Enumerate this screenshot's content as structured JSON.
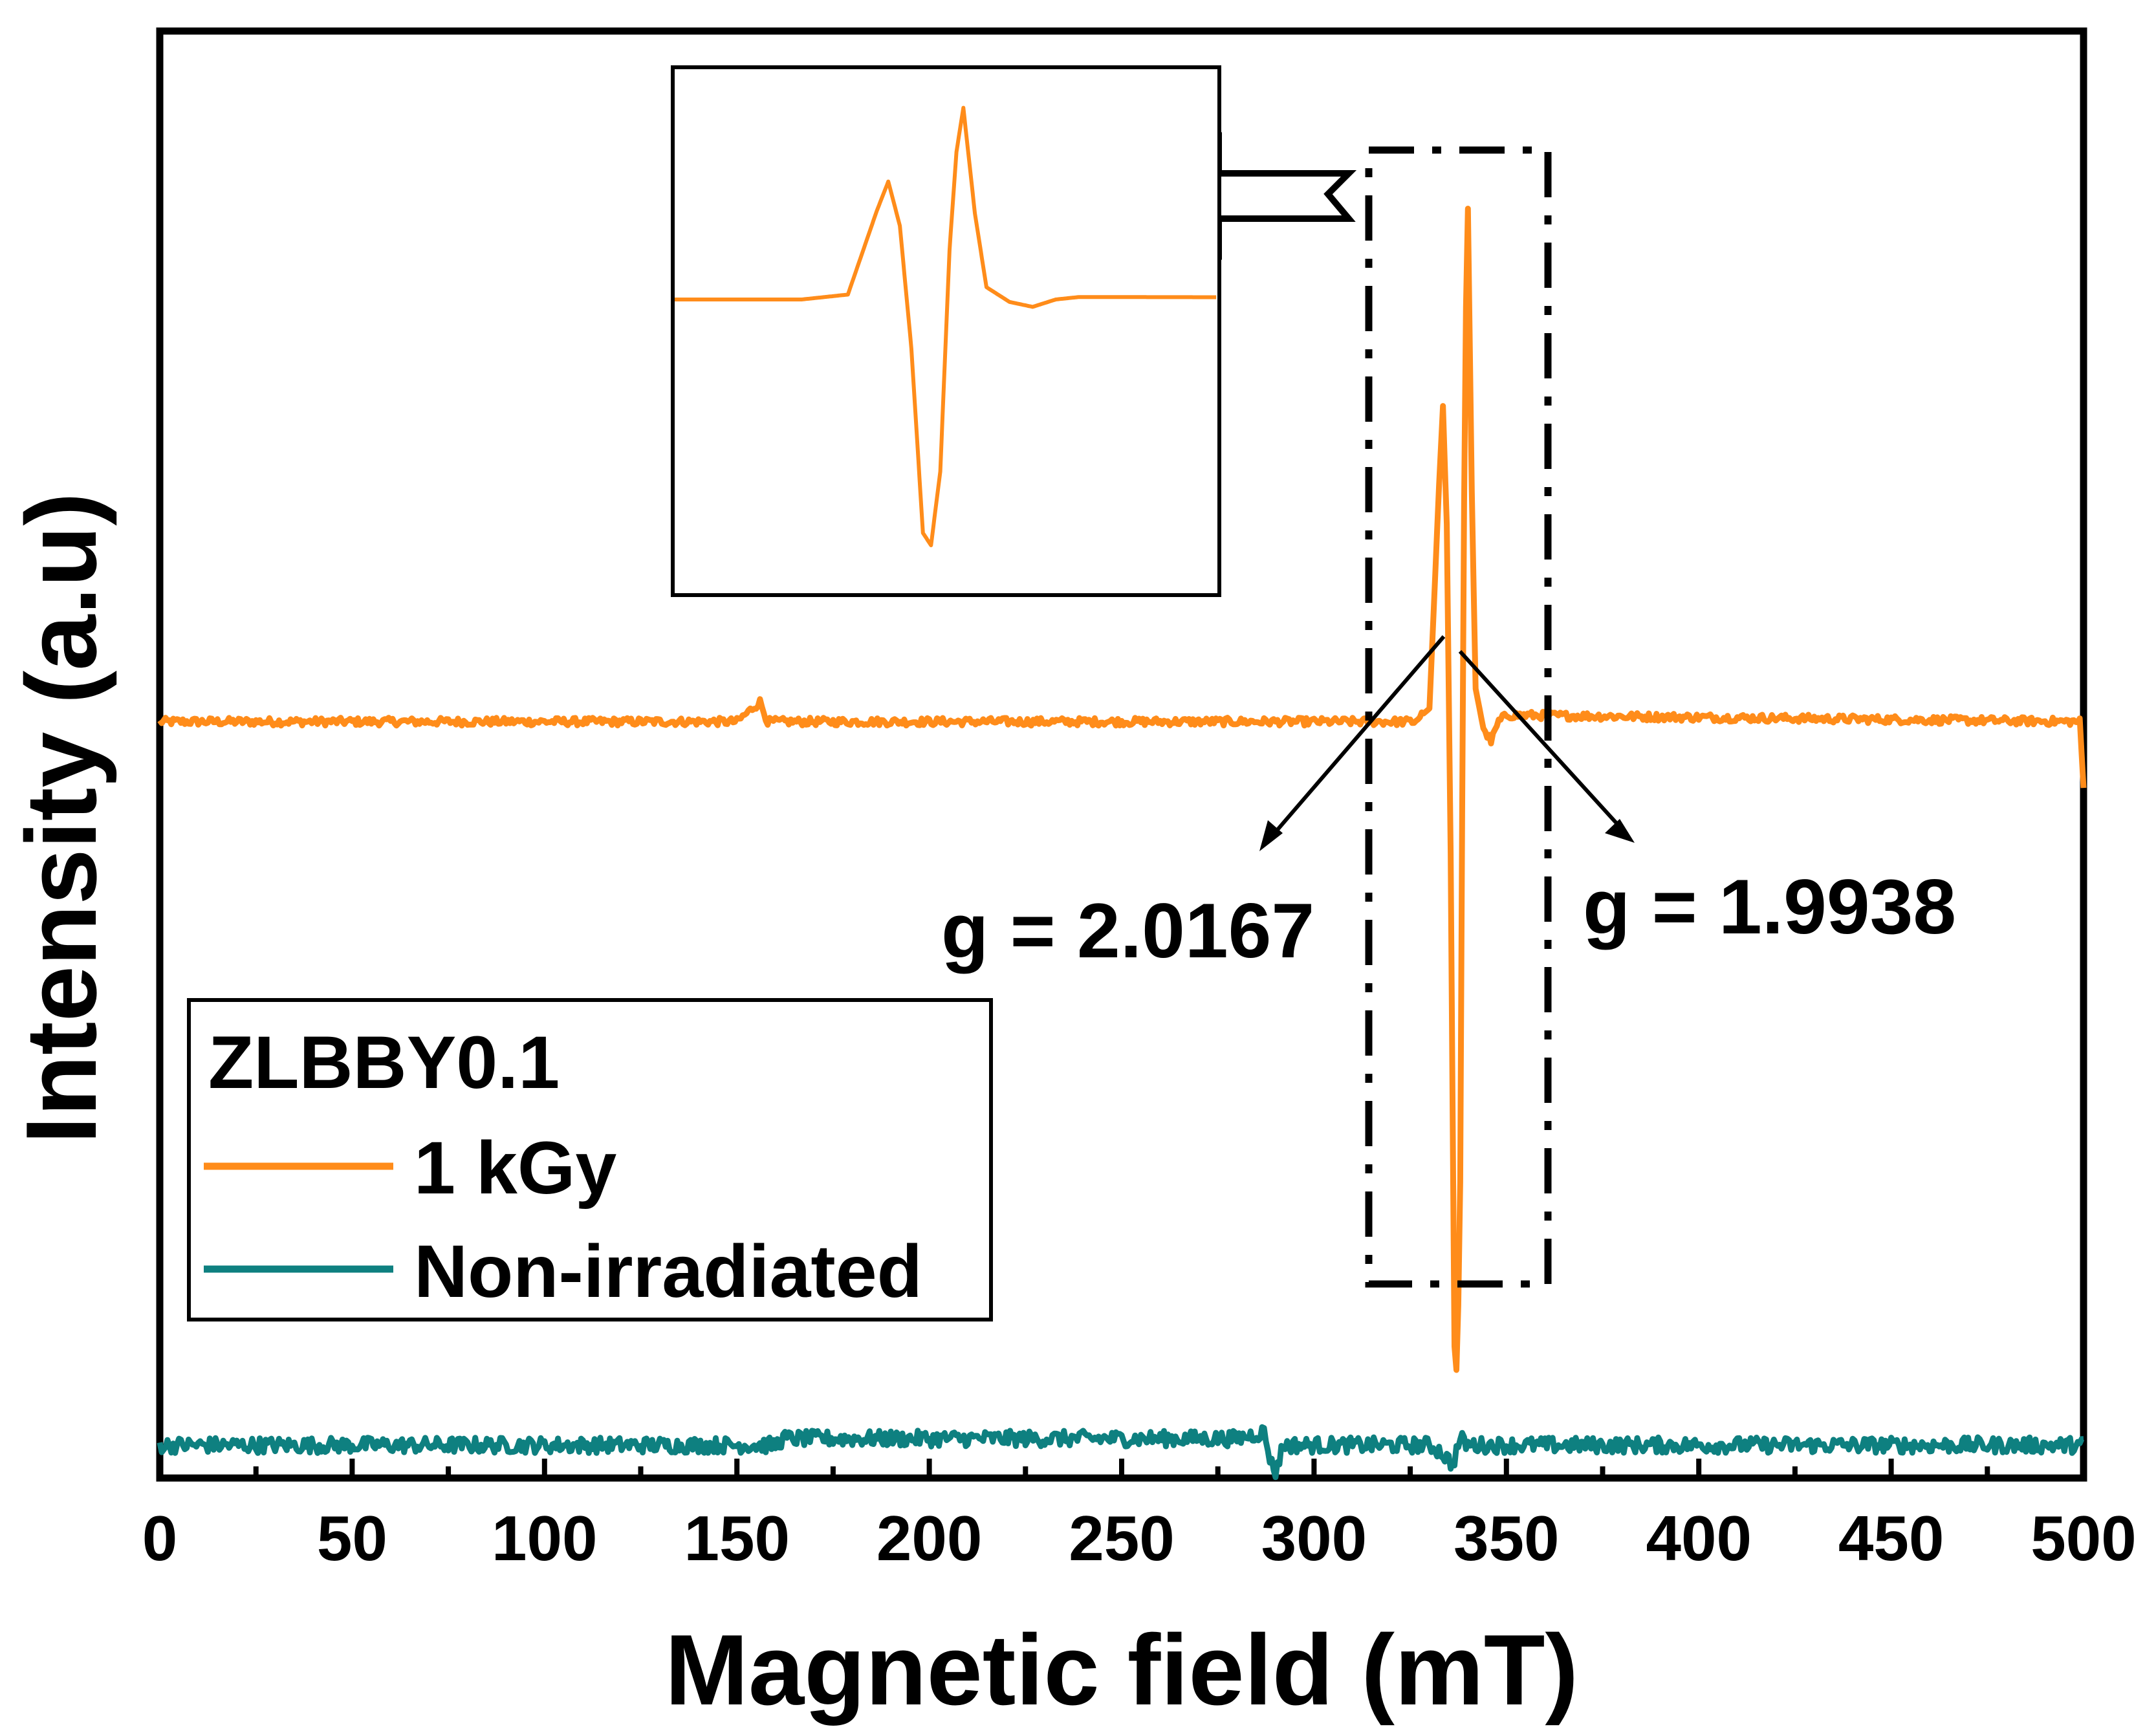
{
  "chart_data": {
    "type": "line",
    "xlabel": "Magnetic field (mT)",
    "ylabel": "Intensity (a.u)",
    "xlim": [
      0,
      500
    ],
    "ylim": [
      -1.15,
      1.05
    ],
    "x_ticks": [
      "0",
      "50",
      "100",
      "150",
      "200",
      "250",
      "300",
      "350",
      "400",
      "450",
      "500"
    ],
    "grid": false,
    "legend": {
      "position": "bottom-left",
      "title": "ZLBBY0.1",
      "entries": [
        "1 kGy",
        "Non-irradiated"
      ]
    },
    "series": [
      {
        "name": "1 kGy",
        "color": "#FF8C1A",
        "baseline": 0,
        "points": [
          [
            0,
            0
          ],
          [
            150,
            0
          ],
          [
            154,
            0.02
          ],
          [
            156,
            0.03
          ],
          [
            158,
            0
          ],
          [
            326,
            0
          ],
          [
            330,
            0.02
          ],
          [
            332.5,
            0.36
          ],
          [
            333.5,
            0.48
          ],
          [
            334.5,
            0.3
          ],
          [
            335.5,
            -0.2
          ],
          [
            336.5,
            -0.95
          ],
          [
            337.2,
            -1.0
          ],
          [
            338,
            -0.7
          ],
          [
            338.8,
            0.2
          ],
          [
            339.4,
            0.6
          ],
          [
            340,
            0.78
          ],
          [
            341,
            0.35
          ],
          [
            342,
            0.05
          ],
          [
            344,
            -0.01
          ],
          [
            346,
            -0.03
          ],
          [
            348,
            0
          ],
          [
            350,
            0.01
          ],
          [
            499,
            0
          ],
          [
            500,
            -0.1
          ]
        ]
      },
      {
        "name": "Non-irradiated",
        "color": "#0E8080",
        "baseline": -1.1,
        "points": [
          [
            0,
            -1.1
          ],
          [
            160,
            -1.1
          ],
          [
            162,
            -1.09
          ],
          [
            280,
            -1.09
          ],
          [
            287,
            -1.08
          ],
          [
            289,
            -1.13
          ],
          [
            290,
            -1.14
          ],
          [
            292,
            -1.1
          ],
          [
            330,
            -1.1
          ],
          [
            333,
            -1.11
          ],
          [
            336,
            -1.13
          ],
          [
            338,
            -1.09
          ],
          [
            340,
            -1.1
          ],
          [
            500,
            -1.1
          ]
        ]
      }
    ],
    "annotations": [
      {
        "text": "g = 2.0167",
        "x": 335
      },
      {
        "text": "g = 1.9938",
        "x": 339
      }
    ],
    "inset": {
      "description_source": "zoom of dashed region",
      "xlim": [
        315,
        362
      ]
    }
  }
}
